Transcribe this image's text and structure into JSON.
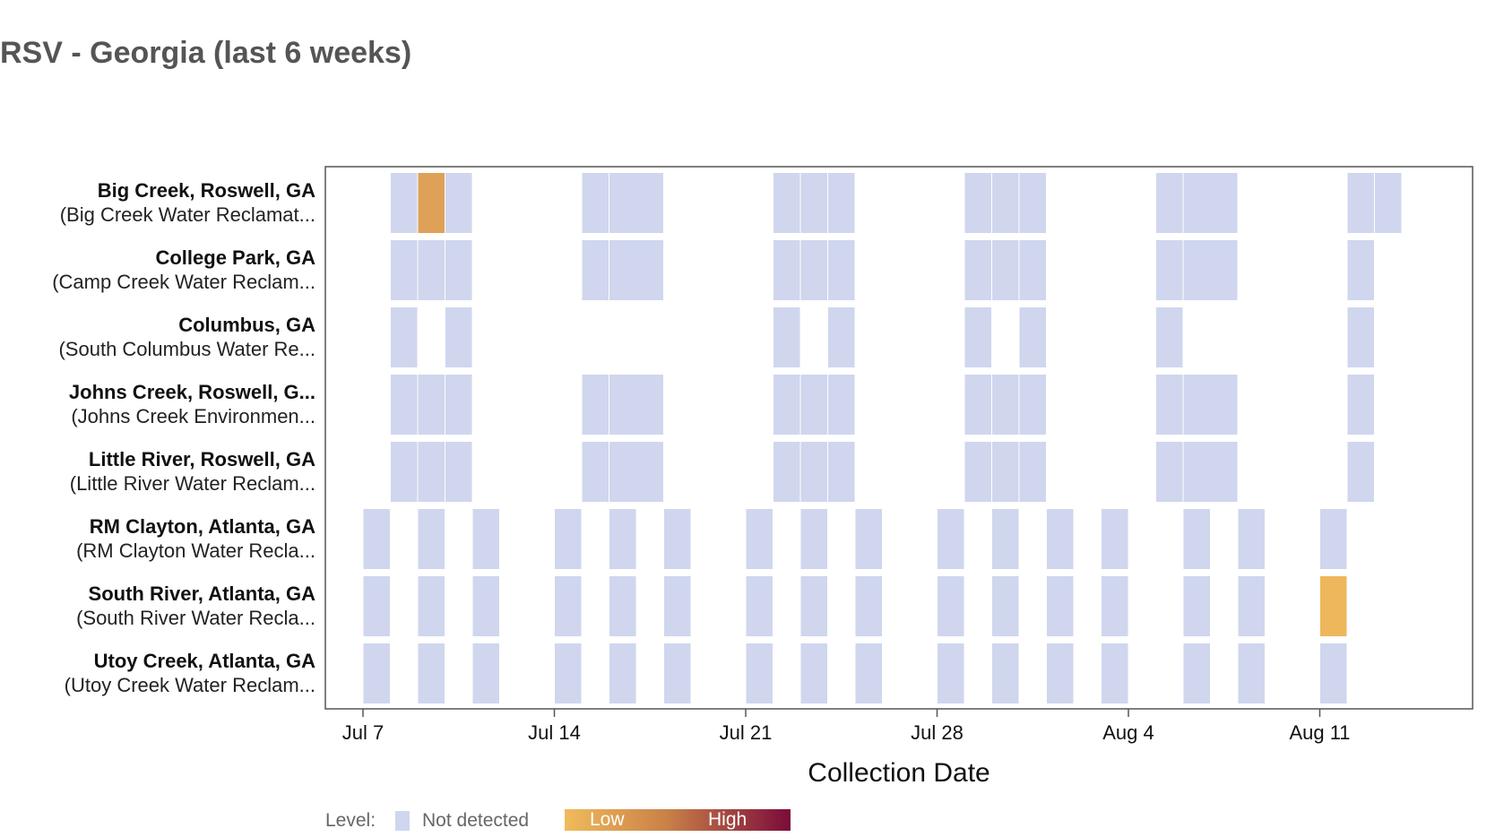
{
  "chart_data": {
    "type": "heatmap",
    "title": "RSV - Georgia (last 6 weeks)",
    "xlabel": "Collection Date",
    "x_ticks": [
      "Jul 7",
      "Jul 14",
      "Jul 21",
      "Jul 28",
      "Aug 4",
      "Aug 11"
    ],
    "xlim": [
      "2024-07-06",
      "2024-08-18"
    ],
    "colors": {
      "not_detected": "#cfd6ee",
      "low": "#f0bb5c",
      "high": "#7b0b3a"
    },
    "legend": {
      "prefix": "Level:",
      "not_detected_label": "Not detected",
      "low_label": "Low",
      "high_label": "High"
    },
    "sites": [
      {
        "name": "Big Creek, Roswell, GA",
        "label": "Big Creek, Roswell, GA",
        "sublabel": "(Big Creek Water Reclamat...",
        "samples": [
          {
            "start": "2024-07-08",
            "end": "2024-07-09",
            "level": "Not detected"
          },
          {
            "start": "2024-07-09",
            "end": "2024-07-10",
            "level": "Low",
            "intensity": 0.15
          },
          {
            "start": "2024-07-10",
            "end": "2024-07-11",
            "level": "Not detected"
          },
          {
            "start": "2024-07-15",
            "end": "2024-07-16",
            "level": "Not detected"
          },
          {
            "start": "2024-07-16",
            "end": "2024-07-18",
            "level": "Not detected"
          },
          {
            "start": "2024-07-22",
            "end": "2024-07-23",
            "level": "Not detected"
          },
          {
            "start": "2024-07-23",
            "end": "2024-07-24",
            "level": "Not detected"
          },
          {
            "start": "2024-07-24",
            "end": "2024-07-25",
            "level": "Not detected"
          },
          {
            "start": "2024-07-29",
            "end": "2024-07-30",
            "level": "Not detected"
          },
          {
            "start": "2024-07-30",
            "end": "2024-07-31",
            "level": "Not detected"
          },
          {
            "start": "2024-07-31",
            "end": "2024-08-01",
            "level": "Not detected"
          },
          {
            "start": "2024-08-05",
            "end": "2024-08-06",
            "level": "Not detected"
          },
          {
            "start": "2024-08-06",
            "end": "2024-08-08",
            "level": "Not detected"
          },
          {
            "start": "2024-08-12",
            "end": "2024-08-13",
            "level": "Not detected"
          },
          {
            "start": "2024-08-13",
            "end": "2024-08-14",
            "level": "Not detected"
          }
        ]
      },
      {
        "name": "College Park, GA",
        "label": "College Park, GA",
        "sublabel": "(Camp Creek Water Reclam...",
        "samples": [
          {
            "start": "2024-07-08",
            "end": "2024-07-09",
            "level": "Not detected"
          },
          {
            "start": "2024-07-09",
            "end": "2024-07-10",
            "level": "Not detected"
          },
          {
            "start": "2024-07-10",
            "end": "2024-07-11",
            "level": "Not detected"
          },
          {
            "start": "2024-07-15",
            "end": "2024-07-16",
            "level": "Not detected"
          },
          {
            "start": "2024-07-16",
            "end": "2024-07-18",
            "level": "Not detected"
          },
          {
            "start": "2024-07-22",
            "end": "2024-07-23",
            "level": "Not detected"
          },
          {
            "start": "2024-07-23",
            "end": "2024-07-24",
            "level": "Not detected"
          },
          {
            "start": "2024-07-24",
            "end": "2024-07-25",
            "level": "Not detected"
          },
          {
            "start": "2024-07-29",
            "end": "2024-07-30",
            "level": "Not detected"
          },
          {
            "start": "2024-07-30",
            "end": "2024-07-31",
            "level": "Not detected"
          },
          {
            "start": "2024-07-31",
            "end": "2024-08-01",
            "level": "Not detected"
          },
          {
            "start": "2024-08-05",
            "end": "2024-08-06",
            "level": "Not detected"
          },
          {
            "start": "2024-08-06",
            "end": "2024-08-08",
            "level": "Not detected"
          },
          {
            "start": "2024-08-12",
            "end": "2024-08-13",
            "level": "Not detected"
          }
        ]
      },
      {
        "name": "Columbus, GA",
        "label": "Columbus, GA",
        "sublabel": "(South Columbus Water Re...",
        "samples": [
          {
            "start": "2024-07-08",
            "end": "2024-07-09",
            "level": "Not detected"
          },
          {
            "start": "2024-07-10",
            "end": "2024-07-11",
            "level": "Not detected"
          },
          {
            "start": "2024-07-22",
            "end": "2024-07-23",
            "level": "Not detected"
          },
          {
            "start": "2024-07-24",
            "end": "2024-07-25",
            "level": "Not detected"
          },
          {
            "start": "2024-07-29",
            "end": "2024-07-30",
            "level": "Not detected"
          },
          {
            "start": "2024-07-31",
            "end": "2024-08-01",
            "level": "Not detected"
          },
          {
            "start": "2024-08-05",
            "end": "2024-08-06",
            "level": "Not detected"
          },
          {
            "start": "2024-08-12",
            "end": "2024-08-13",
            "level": "Not detected"
          }
        ]
      },
      {
        "name": "Johns Creek, Roswell, GA",
        "label": "Johns Creek, Roswell, G...",
        "sublabel": "(Johns Creek Environmen...",
        "samples": [
          {
            "start": "2024-07-08",
            "end": "2024-07-09",
            "level": "Not detected"
          },
          {
            "start": "2024-07-09",
            "end": "2024-07-10",
            "level": "Not detected"
          },
          {
            "start": "2024-07-10",
            "end": "2024-07-11",
            "level": "Not detected"
          },
          {
            "start": "2024-07-15",
            "end": "2024-07-16",
            "level": "Not detected"
          },
          {
            "start": "2024-07-16",
            "end": "2024-07-18",
            "level": "Not detected"
          },
          {
            "start": "2024-07-22",
            "end": "2024-07-23",
            "level": "Not detected"
          },
          {
            "start": "2024-07-23",
            "end": "2024-07-24",
            "level": "Not detected"
          },
          {
            "start": "2024-07-24",
            "end": "2024-07-25",
            "level": "Not detected"
          },
          {
            "start": "2024-07-29",
            "end": "2024-07-30",
            "level": "Not detected"
          },
          {
            "start": "2024-07-30",
            "end": "2024-07-31",
            "level": "Not detected"
          },
          {
            "start": "2024-07-31",
            "end": "2024-08-01",
            "level": "Not detected"
          },
          {
            "start": "2024-08-05",
            "end": "2024-08-06",
            "level": "Not detected"
          },
          {
            "start": "2024-08-06",
            "end": "2024-08-08",
            "level": "Not detected"
          },
          {
            "start": "2024-08-12",
            "end": "2024-08-13",
            "level": "Not detected"
          }
        ]
      },
      {
        "name": "Little River, Roswell, GA",
        "label": "Little River, Roswell, GA",
        "sublabel": "(Little River Water Reclam...",
        "samples": [
          {
            "start": "2024-07-08",
            "end": "2024-07-09",
            "level": "Not detected"
          },
          {
            "start": "2024-07-09",
            "end": "2024-07-10",
            "level": "Not detected"
          },
          {
            "start": "2024-07-10",
            "end": "2024-07-11",
            "level": "Not detected"
          },
          {
            "start": "2024-07-15",
            "end": "2024-07-16",
            "level": "Not detected"
          },
          {
            "start": "2024-07-16",
            "end": "2024-07-18",
            "level": "Not detected"
          },
          {
            "start": "2024-07-22",
            "end": "2024-07-23",
            "level": "Not detected"
          },
          {
            "start": "2024-07-23",
            "end": "2024-07-24",
            "level": "Not detected"
          },
          {
            "start": "2024-07-24",
            "end": "2024-07-25",
            "level": "Not detected"
          },
          {
            "start": "2024-07-29",
            "end": "2024-07-30",
            "level": "Not detected"
          },
          {
            "start": "2024-07-30",
            "end": "2024-07-31",
            "level": "Not detected"
          },
          {
            "start": "2024-07-31",
            "end": "2024-08-01",
            "level": "Not detected"
          },
          {
            "start": "2024-08-05",
            "end": "2024-08-06",
            "level": "Not detected"
          },
          {
            "start": "2024-08-06",
            "end": "2024-08-08",
            "level": "Not detected"
          },
          {
            "start": "2024-08-12",
            "end": "2024-08-13",
            "level": "Not detected"
          }
        ]
      },
      {
        "name": "RM Clayton, Atlanta, GA",
        "label": "RM Clayton, Atlanta, GA",
        "sublabel": "(RM Clayton Water Recla...",
        "samples": [
          {
            "start": "2024-07-07",
            "end": "2024-07-08",
            "level": "Not detected"
          },
          {
            "start": "2024-07-09",
            "end": "2024-07-10",
            "level": "Not detected"
          },
          {
            "start": "2024-07-11",
            "end": "2024-07-12",
            "level": "Not detected"
          },
          {
            "start": "2024-07-14",
            "end": "2024-07-15",
            "level": "Not detected"
          },
          {
            "start": "2024-07-16",
            "end": "2024-07-17",
            "level": "Not detected"
          },
          {
            "start": "2024-07-18",
            "end": "2024-07-19",
            "level": "Not detected"
          },
          {
            "start": "2024-07-21",
            "end": "2024-07-22",
            "level": "Not detected"
          },
          {
            "start": "2024-07-23",
            "end": "2024-07-24",
            "level": "Not detected"
          },
          {
            "start": "2024-07-25",
            "end": "2024-07-26",
            "level": "Not detected"
          },
          {
            "start": "2024-07-28",
            "end": "2024-07-29",
            "level": "Not detected"
          },
          {
            "start": "2024-07-30",
            "end": "2024-07-31",
            "level": "Not detected"
          },
          {
            "start": "2024-08-01",
            "end": "2024-08-02",
            "level": "Not detected"
          },
          {
            "start": "2024-08-03",
            "end": "2024-08-04",
            "level": "Not detected"
          },
          {
            "start": "2024-08-06",
            "end": "2024-08-07",
            "level": "Not detected"
          },
          {
            "start": "2024-08-08",
            "end": "2024-08-09",
            "level": "Not detected"
          },
          {
            "start": "2024-08-11",
            "end": "2024-08-12",
            "level": "Not detected"
          }
        ]
      },
      {
        "name": "South River, Atlanta, GA",
        "label": "South River, Atlanta, GA",
        "sublabel": "(South River Water Recla...",
        "samples": [
          {
            "start": "2024-07-07",
            "end": "2024-07-08",
            "level": "Not detected"
          },
          {
            "start": "2024-07-09",
            "end": "2024-07-10",
            "level": "Not detected"
          },
          {
            "start": "2024-07-11",
            "end": "2024-07-12",
            "level": "Not detected"
          },
          {
            "start": "2024-07-14",
            "end": "2024-07-15",
            "level": "Not detected"
          },
          {
            "start": "2024-07-16",
            "end": "2024-07-17",
            "level": "Not detected"
          },
          {
            "start": "2024-07-18",
            "end": "2024-07-19",
            "level": "Not detected"
          },
          {
            "start": "2024-07-21",
            "end": "2024-07-22",
            "level": "Not detected"
          },
          {
            "start": "2024-07-23",
            "end": "2024-07-24",
            "level": "Not detected"
          },
          {
            "start": "2024-07-25",
            "end": "2024-07-26",
            "level": "Not detected"
          },
          {
            "start": "2024-07-28",
            "end": "2024-07-29",
            "level": "Not detected"
          },
          {
            "start": "2024-07-30",
            "end": "2024-07-31",
            "level": "Not detected"
          },
          {
            "start": "2024-08-01",
            "end": "2024-08-02",
            "level": "Not detected"
          },
          {
            "start": "2024-08-03",
            "end": "2024-08-04",
            "level": "Not detected"
          },
          {
            "start": "2024-08-06",
            "end": "2024-08-07",
            "level": "Not detected"
          },
          {
            "start": "2024-08-08",
            "end": "2024-08-09",
            "level": "Not detected"
          },
          {
            "start": "2024-08-11",
            "end": "2024-08-12",
            "level": "Low",
            "intensity": 0.02
          }
        ]
      },
      {
        "name": "Utoy Creek, Atlanta, GA",
        "label": "Utoy Creek, Atlanta, GA",
        "sublabel": "(Utoy Creek Water Reclam...",
        "samples": [
          {
            "start": "2024-07-07",
            "end": "2024-07-08",
            "level": "Not detected"
          },
          {
            "start": "2024-07-09",
            "end": "2024-07-10",
            "level": "Not detected"
          },
          {
            "start": "2024-07-11",
            "end": "2024-07-12",
            "level": "Not detected"
          },
          {
            "start": "2024-07-14",
            "end": "2024-07-15",
            "level": "Not detected"
          },
          {
            "start": "2024-07-16",
            "end": "2024-07-17",
            "level": "Not detected"
          },
          {
            "start": "2024-07-18",
            "end": "2024-07-19",
            "level": "Not detected"
          },
          {
            "start": "2024-07-21",
            "end": "2024-07-22",
            "level": "Not detected"
          },
          {
            "start": "2024-07-23",
            "end": "2024-07-24",
            "level": "Not detected"
          },
          {
            "start": "2024-07-25",
            "end": "2024-07-26",
            "level": "Not detected"
          },
          {
            "start": "2024-07-28",
            "end": "2024-07-29",
            "level": "Not detected"
          },
          {
            "start": "2024-07-30",
            "end": "2024-07-31",
            "level": "Not detected"
          },
          {
            "start": "2024-08-01",
            "end": "2024-08-02",
            "level": "Not detected"
          },
          {
            "start": "2024-08-03",
            "end": "2024-08-04",
            "level": "Not detected"
          },
          {
            "start": "2024-08-06",
            "end": "2024-08-07",
            "level": "Not detected"
          },
          {
            "start": "2024-08-08",
            "end": "2024-08-09",
            "level": "Not detected"
          },
          {
            "start": "2024-08-11",
            "end": "2024-08-12",
            "level": "Not detected"
          }
        ]
      }
    ]
  }
}
